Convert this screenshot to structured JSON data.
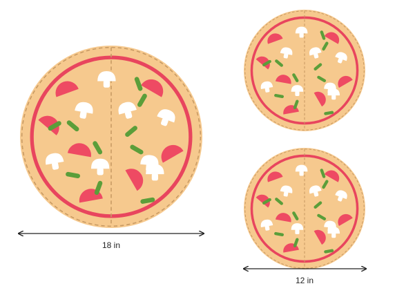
{
  "colors": {
    "crust": "#f6c98e",
    "crust_edge": "#e2a860",
    "sauce_ring": "#e8455e",
    "dashed_line": "#c89a63",
    "tomato": "#ee4a63",
    "mushroom": "#ffffff",
    "pepper": "#5b9e3a",
    "arrow": "#222222"
  },
  "pizzas": [
    {
      "id": "large-pizza",
      "diameter_label": "18 in"
    },
    {
      "id": "small-pizza-top"
    },
    {
      "id": "small-pizza-bottom",
      "diameter_label": "12 in"
    }
  ],
  "toppings": [
    "tomato-slice",
    "mushroom",
    "green-pepper"
  ]
}
